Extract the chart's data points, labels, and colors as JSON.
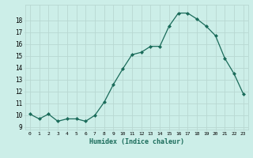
{
  "x": [
    0,
    1,
    2,
    3,
    4,
    5,
    6,
    7,
    8,
    9,
    10,
    11,
    12,
    13,
    14,
    15,
    16,
    17,
    18,
    19,
    20,
    21,
    22,
    23
  ],
  "y": [
    10.1,
    9.7,
    10.1,
    9.5,
    9.7,
    9.7,
    9.5,
    10.0,
    11.1,
    12.6,
    13.9,
    15.1,
    15.3,
    15.8,
    15.8,
    17.5,
    18.6,
    18.6,
    18.1,
    17.5,
    16.7,
    14.8,
    13.5,
    11.8
  ],
  "line_color": "#1a6b5a",
  "bg_color": "#cceee8",
  "grid_color": "#b8d8d2",
  "xlabel": "Humidex (Indice chaleur)",
  "ylabel_ticks": [
    9,
    10,
    11,
    12,
    13,
    14,
    15,
    16,
    17,
    18
  ],
  "ylim": [
    8.8,
    19.3
  ],
  "xlim": [
    -0.5,
    23.5
  ]
}
